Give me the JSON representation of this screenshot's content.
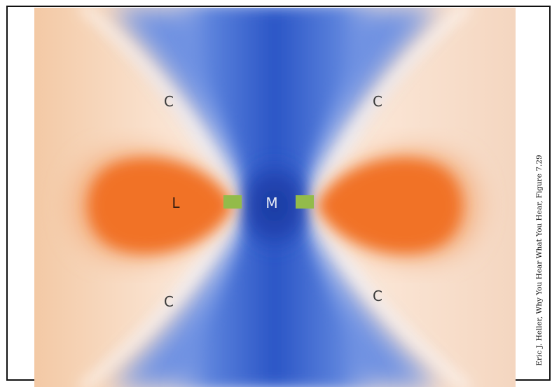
{
  "diagram": {
    "labels": {
      "center": "M",
      "left": "L",
      "top_left": "C",
      "top_right": "C",
      "bottom_left": "C",
      "bottom_right": "C"
    },
    "electrodes": [
      "left-electrode",
      "right-electrode"
    ],
    "colors": {
      "lobe_orange": "#f26a1c",
      "lobe_peach": "#f4c6a0",
      "center_blue": "#1b3fa8",
      "field_blue": "#3a6ad8",
      "node_white": "#ffffff",
      "electrode_green": "#93bb4a"
    }
  },
  "caption": "Eric J. Heller, Why You Hear What You Hear, Figure 7.29"
}
